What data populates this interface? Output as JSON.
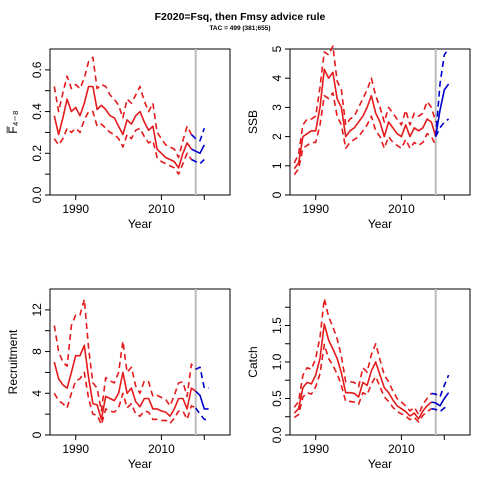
{
  "header": {
    "title": "F2020=Fsq, then  Fmsy advice rule",
    "subtitle": "TAC = 499 (381;655)"
  },
  "colors": {
    "historical": "#e41a1c",
    "projection": "#0000cc",
    "advice_year_line": "#bebebe",
    "axes": "#000000"
  },
  "chart_data": [
    {
      "id": "fbar",
      "type": "line",
      "xlabel": "Year",
      "ylabel": "F̅₄₋₈",
      "xlim": [
        1984,
        2026
      ],
      "ylim": [
        0,
        0.7
      ],
      "xticks": [
        1990,
        2010
      ],
      "xtick_labels": [
        "1990",
        "2010"
      ],
      "minor_xticks": [
        2020
      ],
      "yticks": [
        0,
        0.2,
        0.4,
        0.6
      ],
      "ytick_labels": [
        "0.0",
        "0.2",
        "0.4",
        "0.6"
      ],
      "minor_yticks": [
        0.1,
        0.3,
        0.5
      ],
      "vline": 2018,
      "historical": {
        "x": [
          1985,
          1986,
          1987,
          1988,
          1989,
          1990,
          1991,
          1992,
          1993,
          1994,
          1995,
          1996,
          1997,
          1998,
          1999,
          2000,
          2001,
          2002,
          2003,
          2004,
          2005,
          2006,
          2007,
          2008,
          2009,
          2010,
          2011,
          2012,
          2013,
          2014,
          2015,
          2016,
          2017
        ],
        "median": [
          0.38,
          0.29,
          0.37,
          0.46,
          0.4,
          0.42,
          0.38,
          0.44,
          0.52,
          0.52,
          0.41,
          0.43,
          0.41,
          0.38,
          0.37,
          0.33,
          0.29,
          0.36,
          0.34,
          0.38,
          0.4,
          0.35,
          0.31,
          0.33,
          0.22,
          0.2,
          0.18,
          0.17,
          0.16,
          0.13,
          0.2,
          0.25,
          0.22
        ],
        "lower": [
          0.27,
          0.24,
          0.27,
          0.32,
          0.3,
          0.32,
          0.3,
          0.36,
          0.4,
          0.4,
          0.33,
          0.34,
          0.32,
          0.3,
          0.29,
          0.27,
          0.23,
          0.29,
          0.27,
          0.31,
          0.32,
          0.28,
          0.25,
          0.26,
          0.18,
          0.16,
          0.15,
          0.14,
          0.13,
          0.1,
          0.15,
          0.2,
          0.17
        ],
        "upper": [
          0.52,
          0.4,
          0.49,
          0.57,
          0.51,
          0.53,
          0.51,
          0.56,
          0.64,
          0.66,
          0.51,
          0.53,
          0.52,
          0.48,
          0.46,
          0.43,
          0.37,
          0.46,
          0.44,
          0.48,
          0.52,
          0.45,
          0.4,
          0.44,
          0.3,
          0.27,
          0.24,
          0.23,
          0.22,
          0.18,
          0.26,
          0.33,
          0.29
        ]
      },
      "projection": {
        "x": [
          2017,
          2018,
          2019,
          2020
        ],
        "median": [
          0.22,
          0.21,
          0.2,
          0.24
        ],
        "lower": [
          0.17,
          0.16,
          0.15,
          0.17
        ],
        "upper": [
          0.29,
          0.27,
          0.26,
          0.32
        ]
      }
    },
    {
      "id": "ssb",
      "type": "line",
      "xlabel": "Year",
      "ylabel": "SSB",
      "xlim": [
        1984,
        2026
      ],
      "ylim": [
        0,
        5
      ],
      "xticks": [
        1990,
        2010
      ],
      "xtick_labels": [
        "1990",
        "2010"
      ],
      "minor_xticks": [
        2020
      ],
      "yticks": [
        0,
        1,
        2,
        3,
        4,
        5
      ],
      "ytick_labels": [
        "0",
        "1",
        "2",
        "3",
        "4",
        "5"
      ],
      "minor_yticks": [],
      "vline": 2018,
      "historical": {
        "x": [
          1985,
          1986,
          1987,
          1988,
          1989,
          1990,
          1991,
          1992,
          1993,
          1994,
          1995,
          1996,
          1997,
          1998,
          1999,
          2000,
          2001,
          2002,
          2003,
          2004,
          2005,
          2006,
          2007,
          2008,
          2009,
          2010,
          2011,
          2012,
          2013,
          2014,
          2015,
          2016,
          2017,
          2018
        ],
        "median": [
          0.9,
          1.1,
          2.0,
          2.1,
          2.2,
          2.2,
          3.0,
          4.3,
          4.0,
          4.2,
          3.3,
          3.0,
          2.0,
          2.2,
          2.3,
          2.5,
          2.7,
          3.0,
          3.4,
          2.8,
          2.5,
          2.0,
          2.5,
          2.3,
          2.1,
          2.0,
          2.4,
          2.0,
          2.3,
          2.2,
          2.3,
          2.6,
          2.5,
          2.0
        ],
        "lower": [
          0.7,
          0.9,
          1.6,
          1.7,
          1.8,
          1.8,
          2.4,
          3.4,
          3.3,
          3.5,
          2.7,
          2.4,
          1.6,
          1.8,
          1.9,
          2.0,
          2.2,
          2.4,
          2.7,
          2.2,
          2.0,
          1.6,
          2.0,
          1.8,
          1.7,
          1.6,
          1.9,
          1.6,
          1.8,
          1.7,
          1.8,
          2.1,
          2.0,
          1.7
        ],
        "upper": [
          1.1,
          1.4,
          2.4,
          2.6,
          2.6,
          2.7,
          3.7,
          4.9,
          4.8,
          5.1,
          3.9,
          3.6,
          2.4,
          2.6,
          2.7,
          3.0,
          3.3,
          3.6,
          4.0,
          3.4,
          3.0,
          2.5,
          3.0,
          2.8,
          2.6,
          2.4,
          2.9,
          2.4,
          2.8,
          2.7,
          2.8,
          3.2,
          3.0,
          2.5
        ]
      },
      "projection": {
        "x": [
          2018,
          2019,
          2020,
          2021
        ],
        "median": [
          2.0,
          2.9,
          3.6,
          3.8
        ],
        "lower": [
          2.0,
          2.3,
          2.5,
          2.6
        ],
        "upper": [
          2.0,
          3.8,
          4.8,
          5.0
        ]
      }
    },
    {
      "id": "recruitment",
      "type": "line",
      "xlabel": "Year",
      "ylabel": "Recruitment",
      "xlim": [
        1984,
        2026
      ],
      "ylim": [
        0,
        14
      ],
      "xticks": [
        1990,
        2010
      ],
      "xtick_labels": [
        "1990",
        "2010"
      ],
      "minor_xticks": [
        2020
      ],
      "yticks": [
        0,
        4,
        8,
        12
      ],
      "ytick_labels": [
        "0",
        "4",
        "8",
        "12"
      ],
      "minor_yticks": [
        2,
        6,
        10
      ],
      "vline": 2018,
      "historical": {
        "x": [
          1985,
          1986,
          1987,
          1988,
          1989,
          1990,
          1991,
          1992,
          1993,
          1994,
          1995,
          1996,
          1997,
          1998,
          1999,
          2000,
          2001,
          2002,
          2003,
          2004,
          2005,
          2006,
          2007,
          2008,
          2009,
          2010,
          2011,
          2012,
          2013,
          2014,
          2015,
          2016,
          2017,
          2018
        ],
        "median": [
          7.0,
          5.4,
          4.8,
          4.5,
          6.0,
          7.6,
          7.6,
          8.6,
          5.5,
          3.0,
          2.9,
          1.5,
          3.7,
          3.5,
          3.3,
          4.0,
          6.0,
          4.0,
          4.5,
          3.2,
          2.7,
          3.5,
          3.5,
          2.5,
          2.5,
          2.3,
          2.2,
          1.8,
          2.5,
          3.5,
          3.5,
          2.5,
          4.5,
          4.2
        ],
        "lower": [
          4.0,
          3.3,
          3.0,
          2.6,
          4.0,
          5.2,
          5.4,
          6.0,
          3.5,
          2.0,
          1.9,
          1.0,
          2.5,
          2.3,
          2.2,
          2.6,
          4.0,
          2.6,
          3.0,
          2.0,
          1.8,
          2.3,
          2.2,
          1.5,
          1.5,
          1.4,
          1.4,
          1.1,
          1.6,
          2.3,
          2.3,
          1.5,
          2.8,
          2.6
        ],
        "upper": [
          10.5,
          8.0,
          7.0,
          6.6,
          10.5,
          11.5,
          11.5,
          13.0,
          8.3,
          5.0,
          4.5,
          2.3,
          5.5,
          5.2,
          5.0,
          6.0,
          9.0,
          6.0,
          6.5,
          4.7,
          4.0,
          5.2,
          5.1,
          3.7,
          3.8,
          3.6,
          3.4,
          2.8,
          3.8,
          5.0,
          5.1,
          3.7,
          6.8,
          6.3
        ]
      },
      "projection": {
        "x": [
          2018,
          2019,
          2020,
          2021
        ],
        "median": [
          4.2,
          3.8,
          2.5,
          2.5
        ],
        "lower": [
          2.6,
          2.0,
          1.5,
          1.5
        ],
        "upper": [
          6.3,
          6.5,
          4.5,
          4.5
        ]
      }
    },
    {
      "id": "catch",
      "type": "line",
      "xlabel": "Year",
      "ylabel": "Catch",
      "xlim": [
        1984,
        2026
      ],
      "ylim": [
        0,
        2
      ],
      "xticks": [
        1990,
        2010
      ],
      "xtick_labels": [
        "1990",
        "2010"
      ],
      "minor_xticks": [
        2020
      ],
      "yticks": [
        0,
        0.5,
        1.0,
        1.5
      ],
      "ytick_labels": [
        "0.0",
        "0.5",
        "1.0",
        "1.5"
      ],
      "minor_yticks": [
        0.25,
        0.75,
        1.25,
        1.75
      ],
      "vline": 2018,
      "historical": {
        "x": [
          1985,
          1986,
          1987,
          1988,
          1989,
          1990,
          1991,
          1992,
          1993,
          1994,
          1995,
          1996,
          1997,
          1998,
          1999,
          2000,
          2001,
          2002,
          2003,
          2004,
          2005,
          2006,
          2007,
          2008,
          2009,
          2010,
          2011,
          2012,
          2013,
          2014,
          2015,
          2016,
          2017
        ],
        "median": [
          0.3,
          0.36,
          0.65,
          0.72,
          0.7,
          0.82,
          1.05,
          1.52,
          1.3,
          1.18,
          1.05,
          0.85,
          0.58,
          0.58,
          0.57,
          0.52,
          0.72,
          0.68,
          0.88,
          1.0,
          0.82,
          0.65,
          0.58,
          0.48,
          0.4,
          0.36,
          0.32,
          0.26,
          0.3,
          0.22,
          0.33,
          0.4,
          0.45
        ],
        "lower": [
          0.24,
          0.28,
          0.52,
          0.58,
          0.56,
          0.66,
          0.84,
          1.24,
          1.05,
          0.95,
          0.84,
          0.68,
          0.46,
          0.46,
          0.45,
          0.42,
          0.58,
          0.55,
          0.7,
          0.8,
          0.66,
          0.52,
          0.46,
          0.38,
          0.32,
          0.29,
          0.26,
          0.21,
          0.24,
          0.18,
          0.27,
          0.32,
          0.36
        ],
        "upper": [
          0.38,
          0.46,
          0.82,
          0.92,
          0.9,
          1.05,
          1.34,
          1.87,
          1.62,
          1.48,
          1.32,
          1.08,
          0.73,
          0.73,
          0.72,
          0.66,
          0.92,
          0.86,
          1.1,
          1.25,
          1.03,
          0.82,
          0.73,
          0.6,
          0.5,
          0.45,
          0.4,
          0.33,
          0.38,
          0.28,
          0.42,
          0.5,
          0.57
        ]
      },
      "projection": {
        "x": [
          2017,
          2018,
          2019,
          2020,
          2021
        ],
        "median": [
          0.45,
          0.44,
          0.4,
          0.5,
          0.58
        ],
        "lower": [
          0.36,
          0.35,
          0.32,
          0.37,
          0.4
        ],
        "upper": [
          0.57,
          0.56,
          0.52,
          0.68,
          0.82
        ]
      }
    }
  ]
}
